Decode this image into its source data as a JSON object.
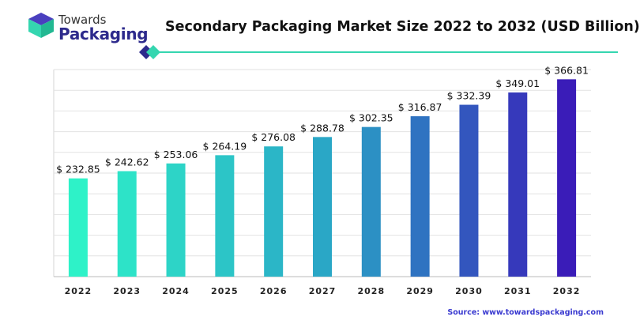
{
  "brand": {
    "line1": "Towards",
    "line2": "Packaging"
  },
  "source": "Source: www.towardspackaging.com",
  "colors": {
    "bar_start": "#2ef2c8",
    "bar_mid": "#2a9fc6",
    "bar_end": "#3a1cb8",
    "brand_navy": "#2d2a8c",
    "accent_teal": "#35d6b0"
  },
  "chart_data": {
    "type": "bar",
    "title": "Secondary Packaging Market Size 2022 to 2032 (USD Billion)",
    "categories": [
      "2022",
      "2023",
      "2024",
      "2025",
      "2026",
      "2027",
      "2028",
      "2029",
      "2030",
      "2031",
      "2032"
    ],
    "values": [
      232.85,
      242.62,
      253.06,
      264.19,
      276.08,
      288.78,
      302.35,
      316.87,
      332.39,
      349.01,
      366.81
    ],
    "labels": [
      "$ 232.85",
      "$ 242.62",
      "$ 253.06",
      "$ 264.19",
      "$ 276.08",
      "$ 288.78",
      "$ 302.35",
      "$ 316.87",
      "$ 332.39",
      "$ 349.01",
      "$ 366.81"
    ],
    "xlabel": "",
    "ylabel": "",
    "grid": true,
    "legend": "none"
  }
}
